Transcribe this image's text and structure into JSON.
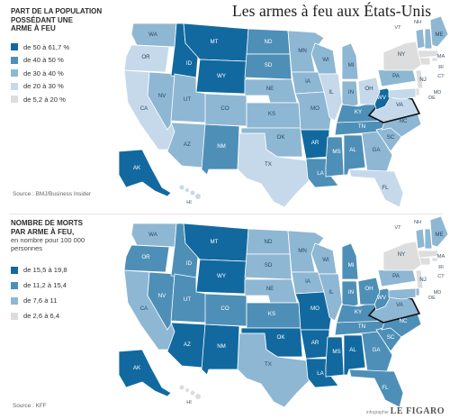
{
  "title": "Les armes à feu aux États-Unis",
  "colors": {
    "c1": "#12699f",
    "c2": "#4e8fb7",
    "c3": "#8eb7d3",
    "c4": "#c5d9ea",
    "c5": "#dddddd"
  },
  "map1": {
    "heading_lines": [
      "PART DE LA POPULATION",
      "POSSÉDANT UNE",
      "ARME À FEU"
    ],
    "legend": [
      {
        "label": "de 50 à 61,7 %",
        "color_key": "c1"
      },
      {
        "label": "de 40 à 50 %",
        "color_key": "c2"
      },
      {
        "label": "de 30 à 40 %",
        "color_key": "c3"
      },
      {
        "label": "de 20 à 30 %",
        "color_key": "c4"
      },
      {
        "label": "de 5,2 à 20 %",
        "color_key": "c5"
      }
    ],
    "source": "Source : BMJ/Business Insider",
    "states": {
      "WA": "c3",
      "OR": "c4",
      "CA": "c4",
      "NV": "c3",
      "ID": "c1",
      "MT": "c1",
      "WY": "c1",
      "UT": "c3",
      "AZ": "c3",
      "NM": "c2",
      "CO": "c3",
      "ND": "c2",
      "SD": "c2",
      "NE": "c3",
      "KS": "c3",
      "OK": "c3",
      "TX": "c4",
      "MN": "c3",
      "IA": "c3",
      "MO": "c3",
      "AR": "c1",
      "LA": "c2",
      "WI": "c3",
      "IL": "c4",
      "MS": "c2",
      "MI": "c3",
      "IN": "c3",
      "KY": "c2",
      "TN": "c2",
      "AL": "c2",
      "GA": "c3",
      "FL": "c4",
      "SC": "c3",
      "NC": "c3",
      "VA": "c4",
      "WV": "c1",
      "OH": "c4",
      "PA": "c3",
      "NY": "c5",
      "VT": "c3",
      "NH": "c3",
      "ME": "c3",
      "MA": "c5",
      "RI": "c5",
      "CT": "c5",
      "NJ": "c5",
      "DE": "c5",
      "MD": "c4",
      "AK": "c1",
      "HI": "c4"
    }
  },
  "map2": {
    "heading_lines": [
      "NOMBRE DE MORTS",
      "PAR ARME À FEU,"
    ],
    "subheading": "en nombre pour 100 000 personnes",
    "legend": [
      {
        "label": "de 15,5 à 19,8",
        "color_key": "c1"
      },
      {
        "label": "de 11,2 à 15,4",
        "color_key": "c2"
      },
      {
        "label": "de 7,6 à 11",
        "color_key": "c3"
      },
      {
        "label": "de 2,6 à 6,4",
        "color_key": "c5"
      }
    ],
    "source": "Source : KFF",
    "states": {
      "WA": "c3",
      "OR": "c2",
      "CA": "c3",
      "NV": "c2",
      "ID": "c2",
      "MT": "c1",
      "WY": "c1",
      "UT": "c2",
      "AZ": "c1",
      "NM": "c1",
      "CO": "c2",
      "ND": "c3",
      "SD": "c3",
      "NE": "c3",
      "KS": "c2",
      "OK": "c1",
      "TX": "c3",
      "MN": "c3",
      "IA": "c3",
      "MO": "c1",
      "AR": "c1",
      "LA": "c1",
      "WI": "c3",
      "IL": "c3",
      "MS": "c1",
      "MI": "c2",
      "IN": "c2",
      "KY": "c2",
      "TN": "c2",
      "AL": "c1",
      "GA": "c2",
      "FL": "c2",
      "SC": "c2",
      "NC": "c2",
      "VA": "c3",
      "WV": "c2",
      "OH": "c2",
      "PA": "c3",
      "NY": "c5",
      "VT": "c3",
      "NH": "c3",
      "ME": "c3",
      "MA": "c5",
      "RI": "c5",
      "CT": "c5",
      "NJ": "c5",
      "DE": "c3",
      "MD": "c3",
      "AK": "c1",
      "HI": "c5"
    }
  },
  "state_labels": [
    "WA",
    "OR",
    "CA",
    "NV",
    "ID",
    "MT",
    "WY",
    "UT",
    "AZ",
    "NM",
    "CO",
    "ND",
    "SD",
    "NE",
    "KS",
    "OK",
    "TX",
    "MN",
    "IA",
    "MO",
    "AR",
    "LA",
    "WI",
    "IL",
    "MS",
    "MI",
    "IN",
    "KY",
    "TN",
    "AL",
    "GA",
    "FL",
    "SC",
    "NC",
    "VA",
    "WV",
    "OH",
    "PA",
    "NY",
    "VT",
    "NH",
    "ME",
    "MA",
    "RI",
    "CT",
    "NJ",
    "DE",
    "MD",
    "AK",
    "HI"
  ],
  "credit": {
    "small": "infographie",
    "brand": "LE FIGARO"
  }
}
